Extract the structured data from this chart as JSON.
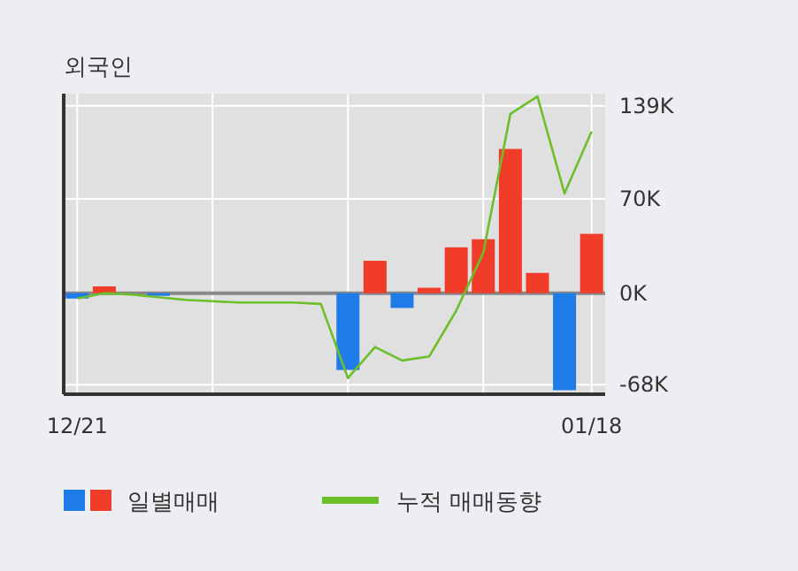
{
  "chart_data": {
    "type": "bar",
    "title": "외국인",
    "categories": [
      "12/21",
      null,
      null,
      null,
      null,
      null,
      null,
      null,
      null,
      null,
      null,
      null,
      null,
      null,
      null,
      null,
      null,
      null,
      null,
      "01/18"
    ],
    "series": [
      {
        "name": "일별매매",
        "colors": [
          "#1e7be8",
          "#f03c28",
          "#f03c28",
          "#1e7be8",
          "#f03c28",
          "#f03c28",
          "#f03c28",
          "#f03c28",
          "#f03c28",
          "#f03c28",
          "#1e7be8",
          "#f03c28",
          "#1e7be8",
          "#f03c28",
          "#f03c28",
          "#f03c28",
          "#f03c28",
          "#f03c28",
          "#1e7be8",
          "#f03c28"
        ],
        "values": [
          -4,
          5,
          0,
          -2,
          0,
          0,
          0,
          0,
          0,
          0,
          -57,
          24,
          -11,
          4,
          34,
          40,
          107,
          15,
          -72,
          44
        ]
      },
      {
        "name": "누적 매매동향",
        "type": "line",
        "color": "#6cbf2a",
        "values": [
          -4,
          0,
          -1,
          -3,
          -5,
          -6,
          -7,
          -7,
          -7,
          -8,
          -63,
          -40,
          -50,
          -47,
          -13,
          30,
          133,
          146,
          74,
          120
        ]
      }
    ],
    "ylim": [
      -75,
      148
    ],
    "yticks": [
      {
        "value": 139,
        "label": "139K"
      },
      {
        "value": 70,
        "label": "70K"
      },
      {
        "value": 0,
        "label": "0K"
      },
      {
        "value": -68,
        "label": "-68K"
      }
    ],
    "grid": true,
    "legend": "bottom"
  }
}
